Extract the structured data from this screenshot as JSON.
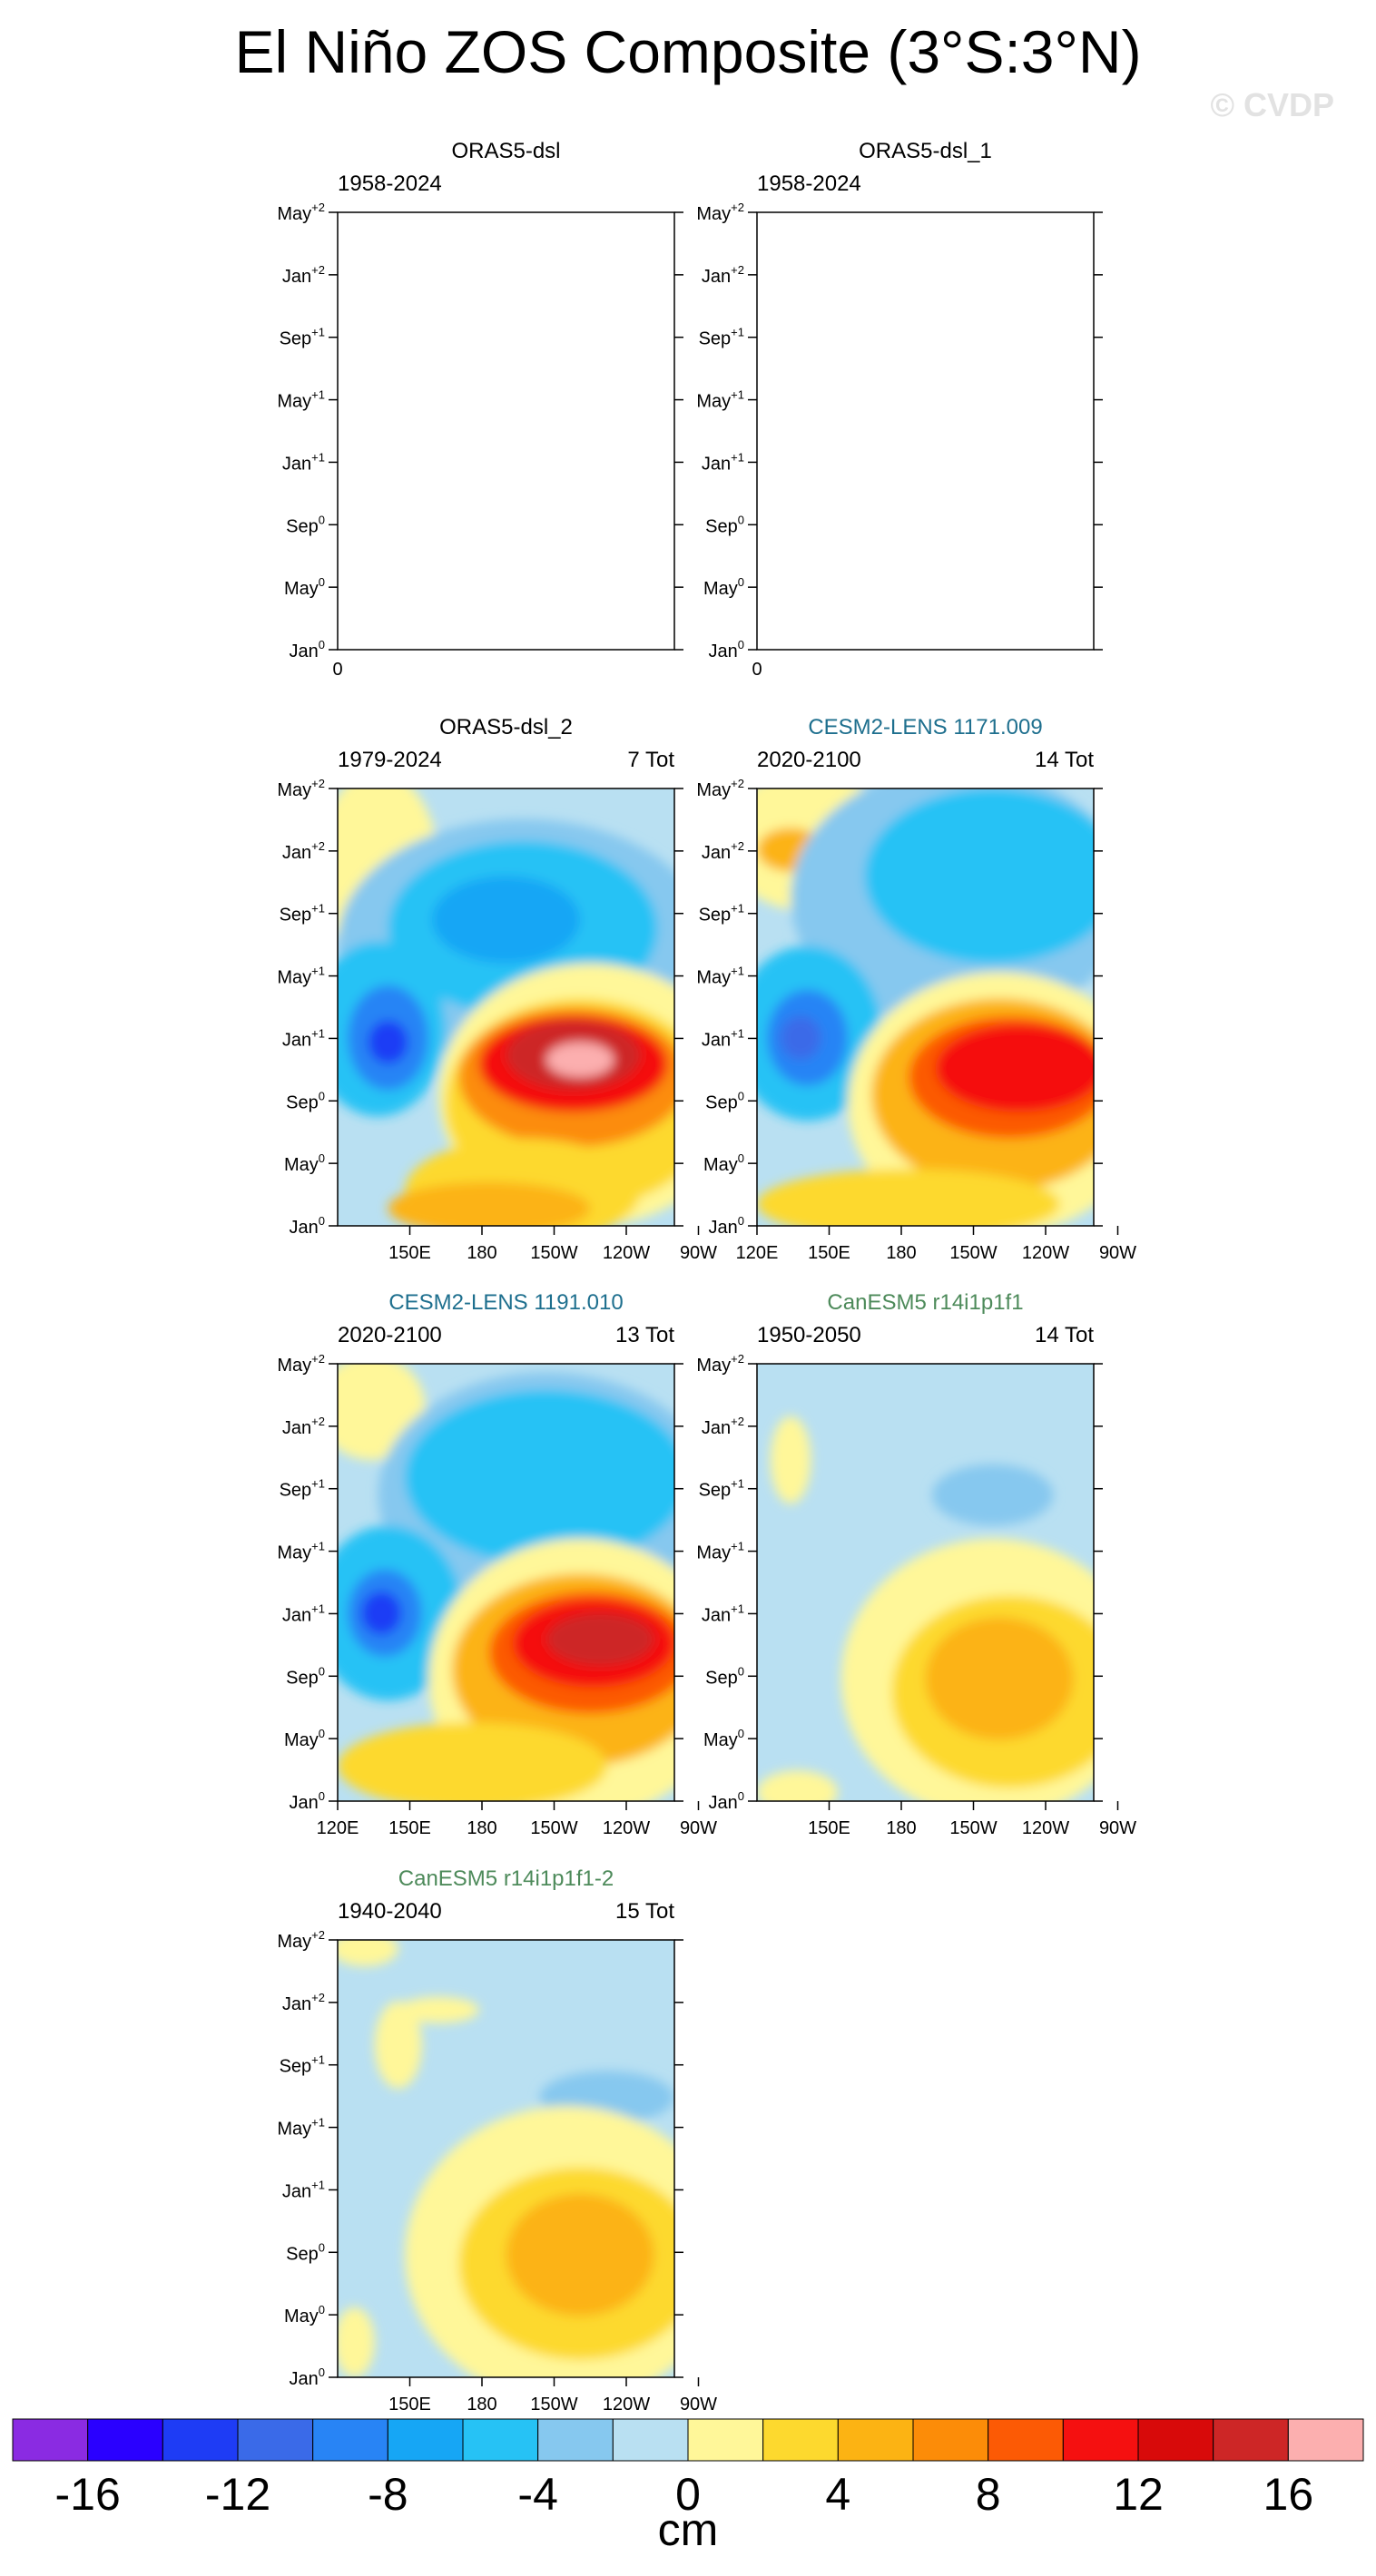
{
  "title": "El Niño ZOS Composite (3°S:3°N)",
  "watermark": "© CVDP",
  "y_ticks": [
    {
      "base": "Jan",
      "sup": "0"
    },
    {
      "base": "May",
      "sup": "0"
    },
    {
      "base": "Sep",
      "sup": "0"
    },
    {
      "base": "Jan",
      "sup": "+1"
    },
    {
      "base": "May",
      "sup": "+1"
    },
    {
      "base": "Sep",
      "sup": "+1"
    },
    {
      "base": "Jan",
      "sup": "+2"
    },
    {
      "base": "May",
      "sup": "+2"
    }
  ],
  "x_ticks_full": [
    "120E",
    "150E",
    "180",
    "150W",
    "120W",
    "90W"
  ],
  "x_ticks_short": [
    "150E",
    "180",
    "150W",
    "120W",
    "90W"
  ],
  "colors": {
    "title_model_cesm": "#1e6f8e",
    "title_model_canesm": "#4d8a5a"
  },
  "panels": [
    {
      "id": "p1",
      "title": "ORAS5-dsl",
      "title_color": "#000000",
      "years": "1958-2024",
      "count": "",
      "empty": true,
      "empty_label": "0"
    },
    {
      "id": "p2",
      "title": "ORAS5-dsl_1",
      "title_color": "#000000",
      "years": "1958-2024",
      "count": "",
      "empty": true,
      "empty_label": "0"
    },
    {
      "id": "p3",
      "title": "ORAS5-dsl_2",
      "title_color": "#000000",
      "years": "1979-2024",
      "count": "7 Tot",
      "empty": false,
      "xticks": "short"
    },
    {
      "id": "p4",
      "title": "CESM2-LENS 1171.009",
      "title_color": "#1e6f8e",
      "years": "2020-2100",
      "count": "14 Tot",
      "empty": false,
      "xticks": "full"
    },
    {
      "id": "p5",
      "title": "CESM2-LENS 1191.010",
      "title_color": "#1e6f8e",
      "years": "2020-2100",
      "count": "13 Tot",
      "empty": false,
      "xticks": "full"
    },
    {
      "id": "p6",
      "title": "CanESM5 r14i1p1f1",
      "title_color": "#4d8a5a",
      "years": "1950-2050",
      "count": "14 Tot",
      "empty": false,
      "xticks": "short"
    },
    {
      "id": "p7",
      "title": "CanESM5 r14i1p1f1-2",
      "title_color": "#4d8a5a",
      "years": "1940-2040",
      "count": "15 Tot",
      "empty": false,
      "xticks": "short"
    }
  ],
  "chart_data": {
    "type": "heatmap",
    "title": "El Niño ZOS Composite (3°S:3°N)",
    "x_axis": "longitude",
    "x_range": [
      "120E",
      "80W"
    ],
    "y_axis": "month relative to El Niño onset",
    "y_range": [
      "Jan0",
      "May+2"
    ],
    "colorbar": {
      "unit": "cm",
      "levels": [
        -16,
        -14,
        -12,
        -10,
        -8,
        -6,
        -4,
        -2,
        0,
        2,
        4,
        6,
        8,
        10,
        12,
        14,
        16
      ],
      "labels": [
        "-16",
        "-12",
        "-8",
        "-4",
        "0",
        "4",
        "8",
        "12",
        "16"
      ],
      "colors": [
        "#8a2be2",
        "#2a00ff",
        "#1e3cf5",
        "#3a6ae8",
        "#2884f5",
        "#16a6f5",
        "#26c2f5",
        "#86c8ef",
        "#b9e0f2",
        "#fff799",
        "#fdd92e",
        "#fcb313",
        "#fc8c08",
        "#fc5a05",
        "#f51010",
        "#d80a0a",
        "#cd2626",
        "#fcafaf"
      ]
    },
    "panels": [
      {
        "name": "ORAS5-dsl",
        "period": "1958-2024",
        "events": null,
        "values": "no data"
      },
      {
        "name": "ORAS5-dsl_1",
        "period": "1958-2024",
        "events": null,
        "values": "no data"
      },
      {
        "name": "ORAS5-dsl_2",
        "period": "1979-2024",
        "events": 7,
        "west_min_cm": -12,
        "east_max_cm": 16
      },
      {
        "name": "CESM2-LENS 1171.009",
        "period": "2020-2100",
        "events": 14,
        "west_min_cm": -12,
        "east_max_cm": 12
      },
      {
        "name": "CESM2-LENS 1191.010",
        "period": "2020-2100",
        "events": 13,
        "west_min_cm": -14,
        "east_max_cm": 14
      },
      {
        "name": "CanESM5 r14i1p1f1",
        "period": "1950-2050",
        "events": 14,
        "west_min_cm": -4,
        "east_max_cm": 6
      },
      {
        "name": "CanESM5 r14i1p1f1-2",
        "period": "1940-2040",
        "events": 15,
        "west_min_cm": -4,
        "east_max_cm": 6
      }
    ]
  }
}
